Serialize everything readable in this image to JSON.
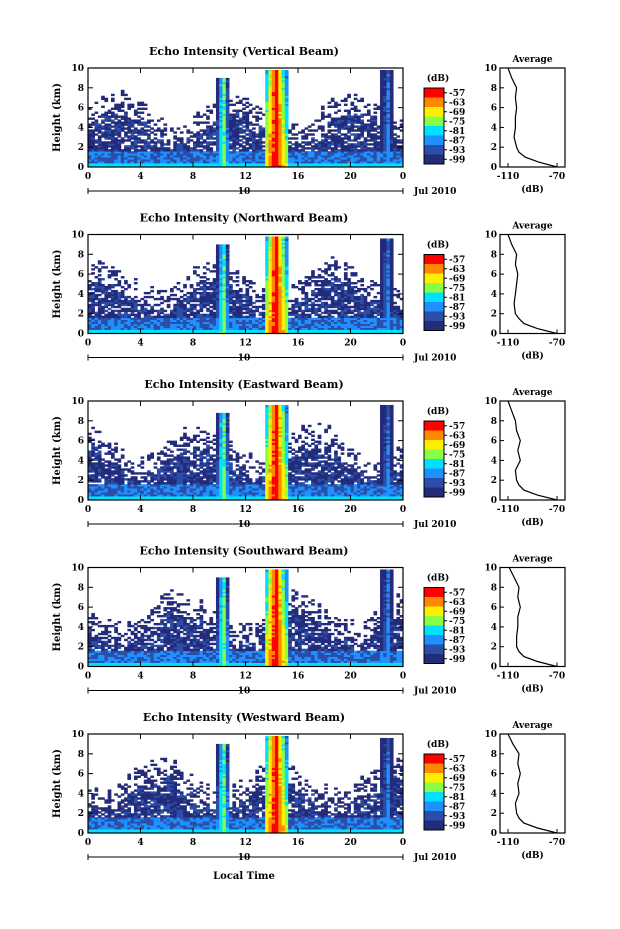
{
  "figure": {
    "xlabel": "Local Time",
    "date_label": "Jul 2010",
    "day_label": "10",
    "colorbar_unit": "(dB)",
    "colorbar_ticks": [
      "-57",
      "-63",
      "-69",
      "-75",
      "-81",
      "-87",
      "-93",
      "-99"
    ],
    "colorbar_colors": [
      "#ff0000",
      "#ff8800",
      "#ffee00",
      "#88ff44",
      "#00e0ff",
      "#1e90ff",
      "#2b4ea8",
      "#232b7a"
    ],
    "y_ticks": [
      "0",
      "2",
      "4",
      "6",
      "8",
      "10"
    ],
    "x_ticks": [
      "0",
      "4",
      "8",
      "12",
      "16",
      "20",
      "0"
    ],
    "avg_title": "Average",
    "avg_xlabel": "(dB)",
    "avg_x_ticks": [
      "-110",
      "-70"
    ],
    "ylabel": "Height (km)"
  },
  "chart_data": [
    {
      "type": "heatmap",
      "title": "Echo Intensity (Vertical Beam)",
      "xlabel": "Local Time",
      "ylabel": "Height (km)",
      "xlim": [
        0,
        24
      ],
      "ylim": [
        0,
        10
      ],
      "zlim": [
        -99,
        -57
      ],
      "zunit": "dB",
      "features": [
        {
          "time": 7,
          "top_km": 2.5,
          "peak_db": -87
        },
        {
          "time": 10.3,
          "top_km": 9.0,
          "peak_db": -75
        },
        {
          "time": 14.3,
          "top_km": 9.8,
          "peak_db": -57
        },
        {
          "time": 22.8,
          "top_km": 9.8,
          "peak_db": -87
        }
      ],
      "average_profile": {
        "height_km": [
          0,
          0.5,
          1,
          1.5,
          2,
          3,
          4,
          5,
          6,
          7,
          8,
          9,
          10
        ],
        "db": [
          -70,
          -85,
          -96,
          -101,
          -103,
          -105,
          -104,
          -104,
          -103,
          -104,
          -103,
          -107,
          -110
        ]
      }
    },
    {
      "type": "heatmap",
      "title": "Echo Intensity (Northward Beam)",
      "xlabel": "Local Time",
      "ylabel": "Height (km)",
      "xlim": [
        0,
        24
      ],
      "ylim": [
        0,
        10
      ],
      "zlim": [
        -99,
        -57
      ],
      "zunit": "dB",
      "features": [
        {
          "time": 7,
          "top_km": 2.8,
          "peak_db": -87
        },
        {
          "time": 10.3,
          "top_km": 9.0,
          "peak_db": -75
        },
        {
          "time": 14.3,
          "top_km": 9.8,
          "peak_db": -57
        },
        {
          "time": 22.8,
          "top_km": 9.6,
          "peak_db": -87
        }
      ],
      "average_profile": {
        "height_km": [
          0,
          0.5,
          1,
          1.5,
          2,
          3,
          4,
          5,
          6,
          7,
          8,
          9,
          10
        ],
        "db": [
          -70,
          -86,
          -97,
          -101,
          -104,
          -105,
          -104,
          -103,
          -102,
          -104,
          -103,
          -107,
          -110
        ]
      }
    },
    {
      "type": "heatmap",
      "title": "Echo Intensity (Eastward Beam)",
      "xlabel": "Local Time",
      "ylabel": "Height (km)",
      "xlim": [
        0,
        24
      ],
      "ylim": [
        0,
        10
      ],
      "zlim": [
        -99,
        -57
      ],
      "zunit": "dB",
      "features": [
        {
          "time": 7,
          "top_km": 2.8,
          "peak_db": -87
        },
        {
          "time": 10.3,
          "top_km": 8.8,
          "peak_db": -75
        },
        {
          "time": 14.3,
          "top_km": 9.6,
          "peak_db": -57
        },
        {
          "time": 22.8,
          "top_km": 9.6,
          "peak_db": -87
        }
      ],
      "average_profile": {
        "height_km": [
          0,
          0.5,
          1,
          1.5,
          2,
          3,
          4,
          5,
          6,
          7,
          8,
          9,
          10
        ],
        "db": [
          -70,
          -86,
          -97,
          -101,
          -103,
          -104,
          -100,
          -102,
          -100,
          -103,
          -104,
          -107,
          -110
        ]
      }
    },
    {
      "type": "heatmap",
      "title": "Echo Intensity (Southward Beam)",
      "xlabel": "Local Time",
      "ylabel": "Height (km)",
      "xlim": [
        0,
        24
      ],
      "ylim": [
        0,
        10
      ],
      "zlim": [
        -99,
        -57
      ],
      "zunit": "dB",
      "features": [
        {
          "time": 7,
          "top_km": 2.5,
          "peak_db": -87
        },
        {
          "time": 10.3,
          "top_km": 9.0,
          "peak_db": -75
        },
        {
          "time": 14.3,
          "top_km": 9.8,
          "peak_db": -57
        },
        {
          "time": 22.8,
          "top_km": 9.8,
          "peak_db": -87
        }
      ],
      "average_profile": {
        "height_km": [
          0,
          0.5,
          1,
          1.5,
          2,
          3,
          4,
          5,
          6,
          7,
          8,
          9,
          10
        ],
        "db": [
          -70,
          -86,
          -97,
          -101,
          -103,
          -103,
          -102,
          -102,
          -100,
          -102,
          -101,
          -105,
          -109
        ]
      }
    },
    {
      "type": "heatmap",
      "title": "Echo Intensity (Westward Beam)",
      "xlabel": "Local Time",
      "ylabel": "Height (km)",
      "xlim": [
        0,
        24
      ],
      "ylim": [
        0,
        10
      ],
      "zlim": [
        -99,
        -57
      ],
      "zunit": "dB",
      "features": [
        {
          "time": 7,
          "top_km": 2.5,
          "peak_db": -87
        },
        {
          "time": 10.3,
          "top_km": 9.0,
          "peak_db": -75
        },
        {
          "time": 14.3,
          "top_km": 9.8,
          "peak_db": -57
        },
        {
          "time": 22.8,
          "top_km": 9.6,
          "peak_db": -87
        }
      ],
      "average_profile": {
        "height_km": [
          0,
          0.5,
          1,
          1.5,
          2,
          3,
          4,
          5,
          6,
          7,
          8,
          9,
          10
        ],
        "db": [
          -70,
          -86,
          -97,
          -101,
          -103,
          -104,
          -101,
          -102,
          -100,
          -102,
          -101,
          -106,
          -110
        ]
      }
    }
  ]
}
